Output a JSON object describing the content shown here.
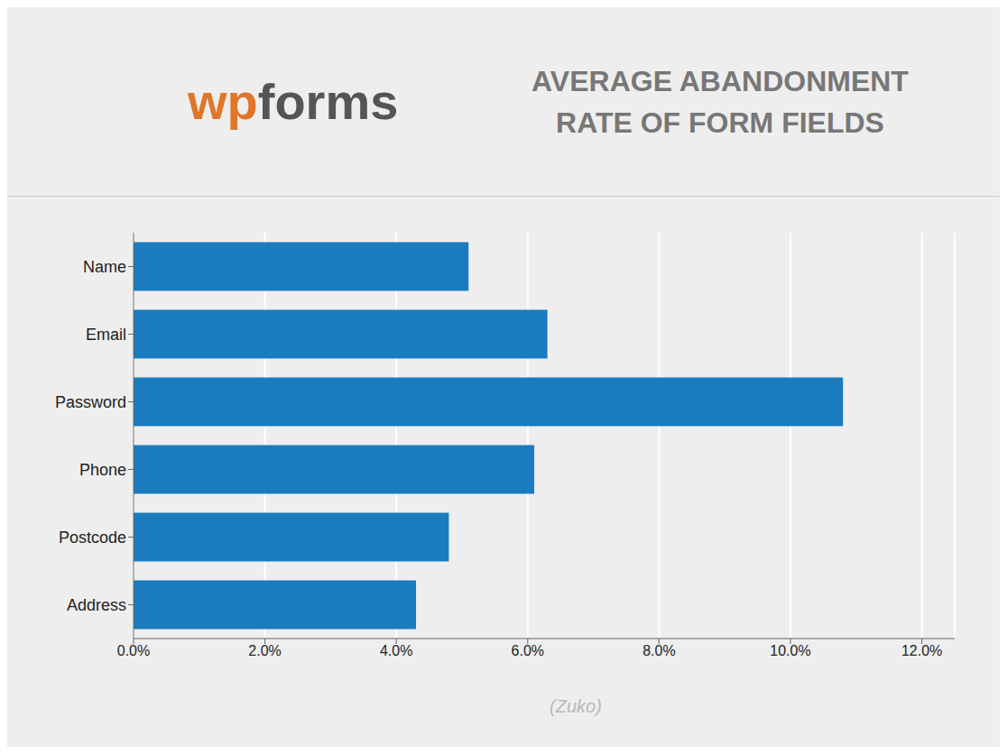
{
  "chart_data": {
    "type": "bar",
    "orientation": "horizontal",
    "title": "AVERAGE ABANDONMENT\nRATE OF FORM FIELDS",
    "categories": [
      "Address",
      "Postcode",
      "Phone",
      "Password",
      "Email",
      "Name"
    ],
    "values": [
      4.3,
      4.8,
      6.1,
      10.8,
      6.3,
      5.1
    ],
    "color": "#1a7bbf",
    "xlim": [
      0,
      12.5
    ],
    "xticks": [
      {
        "value": 0.0,
        "label": "0.0%"
      },
      {
        "value": 2.0,
        "label": "2.0%"
      },
      {
        "value": 4.0,
        "label": "4.0%"
      },
      {
        "value": 6.0,
        "label": "6.0%"
      },
      {
        "value": 8.0,
        "label": "8.0%"
      },
      {
        "value": 10.0,
        "label": "10.0%"
      },
      {
        "value": 12.0,
        "label": "12.0%"
      }
    ],
    "grid": true,
    "annotations": [
      {
        "text": "wp",
        "color": "#e0762a"
      },
      {
        "text": "forms",
        "color": "#555555"
      },
      {
        "text": "(Zuko)",
        "color": "#b8b8b8"
      }
    ]
  }
}
